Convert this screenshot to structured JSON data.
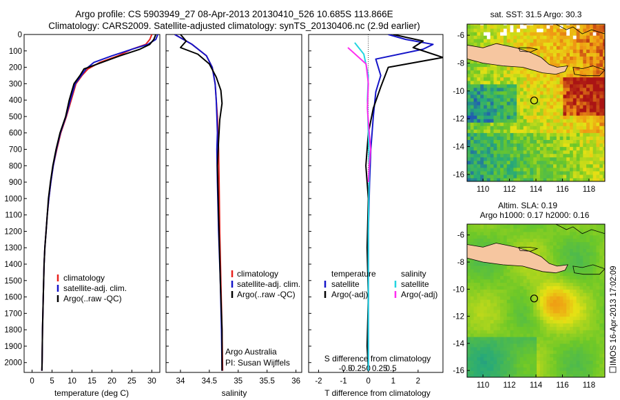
{
  "figure": {
    "title_line1": "Argo profile: CS 5903949_27 08-Apr-2013 20130410_526 10.685S 113.866E",
    "title_line2": "Climatology: CARS2009. Satellite-adjusted climatology: synTS_20130406.nc (2.9d earlier)",
    "side_text": "IMOS 16-Apr-2013 17:02:09",
    "colors": {
      "climatology": "#e8211d",
      "satellite": "#1414c8",
      "argo": "#000000",
      "sat_salinity": "#22d4e0",
      "argo_salinity_adj": "#ff2cf0"
    }
  },
  "chart_data": [
    {
      "id": "temperature-profile",
      "type": "line",
      "xlabel": "temperature (deg C)",
      "ylabel": "",
      "xlim": [
        -2,
        32
      ],
      "ylim": [
        2060,
        0
      ],
      "xticks": [
        0,
        5,
        10,
        15,
        20,
        25,
        30
      ],
      "xtick_labels": [
        "0",
        "5",
        "10",
        "15",
        "20",
        "25",
        "30"
      ],
      "yticks": [
        0,
        100,
        200,
        300,
        400,
        500,
        600,
        700,
        800,
        900,
        1000,
        1100,
        1200,
        1300,
        1400,
        1500,
        1600,
        1700,
        1800,
        1900,
        2000
      ],
      "ytick_labels": [
        "0",
        "100",
        "200",
        "300",
        "400",
        "500",
        "600",
        "700",
        "800",
        "900",
        "1000",
        "1100",
        "1200",
        "1300",
        "1400",
        "1500",
        "1600",
        "1700",
        "1800",
        "1900",
        "2000"
      ],
      "legend": [
        "climatology",
        "satellite-adj. clim.",
        "Argo(..raw -QC)"
      ],
      "series": [
        {
          "name": "climatology",
          "color": "#e8211d",
          "x": [
            30,
            29.5,
            28.5,
            25,
            21.5,
            17,
            14,
            12.5,
            11,
            9.8,
            8.6,
            7.2,
            6.2,
            5.3,
            4.7,
            4.2,
            3.8,
            3.5,
            3.2,
            3.0,
            2.8,
            2.6,
            2.5,
            2.45
          ],
          "y": [
            0,
            30,
            60,
            90,
            130,
            170,
            210,
            250,
            300,
            400,
            500,
            600,
            700,
            800,
            900,
            1000,
            1100,
            1200,
            1300,
            1400,
            1600,
            1800,
            2000,
            2050
          ]
        },
        {
          "name": "satellite-adj. clim.",
          "color": "#1414c8",
          "x": [
            31.5,
            31,
            29,
            25,
            20,
            15.5,
            13.5,
            12.3,
            10.8,
            9.6,
            8.5,
            7.1,
            6.1,
            5.3,
            4.7,
            4.2,
            3.8,
            3.5,
            3.2,
            3.0,
            2.8,
            2.6,
            2.5,
            2.45
          ],
          "y": [
            0,
            30,
            60,
            90,
            130,
            170,
            210,
            250,
            300,
            400,
            500,
            600,
            700,
            800,
            900,
            1000,
            1100,
            1200,
            1300,
            1400,
            1600,
            1800,
            2000,
            2050
          ]
        },
        {
          "name": "Argo(..raw -QC)",
          "color": "#000000",
          "x": [
            31,
            30.5,
            29.5,
            27,
            22,
            17.5,
            13,
            12,
            10.5,
            9.3,
            8.4,
            7.0,
            6.0,
            5.2,
            4.6,
            4.1,
            3.8,
            3.5,
            3.2,
            3.0,
            2.8,
            2.6,
            2.5,
            2.45
          ],
          "y": [
            0,
            30,
            60,
            90,
            130,
            170,
            210,
            250,
            300,
            400,
            500,
            600,
            700,
            800,
            900,
            1000,
            1100,
            1200,
            1300,
            1400,
            1600,
            1800,
            2000,
            2050
          ]
        }
      ]
    },
    {
      "id": "salinity-profile",
      "type": "line",
      "xlabel": "salinity",
      "xlim": [
        33.75,
        36.1
      ],
      "ylim": [
        2060,
        0
      ],
      "xticks": [
        34,
        34.5,
        35,
        35.5,
        36
      ],
      "xtick_labels": [
        "34",
        "34.5",
        "35",
        "35.5",
        "36"
      ],
      "legend": [
        "climatology",
        "satellite-adj. clim.",
        "Argo(..raw -QC)"
      ],
      "annotations": [
        "Argo Australia",
        "PI: Susan Wijffels"
      ],
      "series": [
        {
          "name": "climatology",
          "color": "#e8211d",
          "x": [
            33.9,
            34.2,
            34.45,
            34.55,
            34.6,
            34.62,
            34.64,
            34.65,
            34.66,
            34.67,
            34.68,
            34.7,
            34.72,
            34.73
          ],
          "y": [
            0,
            60,
            130,
            200,
            300,
            400,
            500,
            600,
            700,
            900,
            1200,
            1500,
            1800,
            2050
          ]
        },
        {
          "name": "satellite-adj. clim.",
          "color": "#1414c8",
          "x": [
            33.9,
            34.2,
            34.45,
            34.55,
            34.6,
            34.62,
            34.63,
            34.64,
            34.63,
            34.64,
            34.66,
            34.69,
            34.71,
            34.72
          ],
          "y": [
            0,
            60,
            130,
            200,
            300,
            400,
            500,
            600,
            700,
            900,
            1200,
            1500,
            1800,
            2050
          ]
        },
        {
          "name": "Argo(..raw -QC)",
          "color": "#000000",
          "x": [
            34.0,
            34.1,
            34.0,
            34.3,
            34.5,
            34.62,
            34.7,
            34.72,
            34.68,
            34.66,
            34.64,
            34.66,
            34.69,
            34.72,
            34.72
          ],
          "y": [
            0,
            40,
            80,
            120,
            180,
            260,
            340,
            420,
            520,
            650,
            800,
            1100,
            1500,
            1800,
            2050
          ]
        }
      ]
    },
    {
      "id": "difference-profile",
      "type": "line",
      "xlabel": "T difference from climatology",
      "xlabel2": "S difference from climatology",
      "xlim": [
        -2.4,
        3.0
      ],
      "ylim": [
        2060,
        0
      ],
      "xticks": [
        -2,
        -1,
        0,
        1,
        2
      ],
      "xtick_labels": [
        "-2",
        "-1",
        "0",
        "1",
        "2"
      ],
      "xticks2": [
        -0.5,
        -0.25,
        0,
        0.25,
        0.5
      ],
      "xtick2_labels": [
        "-0.5",
        "-0.25",
        "0",
        "0.25",
        "0.5"
      ],
      "legend_temperature_title": "temperature",
      "legend_salinity_title": "salinity",
      "legend": [
        "satellite",
        "Argo(-adj)",
        "satellite",
        "Argo(-adj)"
      ],
      "series": [
        {
          "name": "T satellite",
          "color": "#1414c8",
          "x": [
            0.8,
            1.5,
            2.6,
            2.2,
            0.3,
            0.5,
            0.3,
            0.2,
            0.1,
            0.05,
            0.0,
            0.0,
            0.0
          ],
          "y": [
            0,
            30,
            60,
            90,
            150,
            250,
            350,
            500,
            700,
            900,
            1200,
            1600,
            2050
          ]
        },
        {
          "name": "T Argo(-adj)",
          "color": "#000000",
          "x": [
            1.0,
            2.2,
            1.8,
            3.0,
            0.8,
            0.5,
            0.2,
            0.0,
            -0.1,
            0.0,
            -0.05,
            0.0,
            -0.05,
            0.0
          ],
          "y": [
            0,
            40,
            80,
            140,
            200,
            320,
            450,
            600,
            800,
            1000,
            1300,
            1600,
            1900,
            2050
          ]
        },
        {
          "name": "S satellite",
          "color": "#22d4e0",
          "x": [
            -0.3,
            -0.1,
            0.0,
            -0.02,
            0.0,
            0.02,
            0.0,
            0.0
          ],
          "y": [
            50,
            120,
            250,
            400,
            600,
            800,
            1200,
            2050
          ]
        },
        {
          "name": "S Argo(-adj)",
          "color": "#ff2cf0",
          "x": [
            -0.45,
            -0.05,
            0.0,
            -0.02,
            0.02,
            0.05,
            0.02,
            0.0
          ],
          "y": [
            80,
            180,
            300,
            450,
            600,
            700,
            800,
            900
          ]
        }
      ]
    },
    {
      "id": "sst-map",
      "type": "heatmap",
      "title": "sat. SST: 31.5  Argo: 30.3",
      "xlim": [
        108.8,
        119.2
      ],
      "ylim": [
        -16.5,
        -5.2
      ],
      "xticks": [
        110,
        112,
        114,
        116,
        118
      ],
      "xtick_labels": [
        "110",
        "112",
        "114",
        "116",
        "118"
      ],
      "yticks": [
        -6,
        -8,
        -10,
        -12,
        -14,
        -16
      ],
      "ytick_labels": [
        "-6",
        "-8",
        "-10",
        "-12",
        "-14",
        "-16"
      ],
      "marker": {
        "lon": 113.866,
        "lat": -10.685
      }
    },
    {
      "id": "sla-map",
      "type": "heatmap",
      "title_line1": "Altim. SLA: 0.19",
      "title_line2": "Argo h1000: 0.17  h2000: 0.16",
      "xlim": [
        108.8,
        119.2
      ],
      "ylim": [
        -16.5,
        -5.2
      ],
      "xticks": [
        110,
        112,
        114,
        116,
        118
      ],
      "xtick_labels": [
        "110",
        "112",
        "114",
        "116",
        "118"
      ],
      "yticks": [
        -6,
        -8,
        -10,
        -12,
        -14,
        -16
      ],
      "ytick_labels": [
        "-6",
        "-8",
        "-10",
        "-12",
        "-14",
        "-16"
      ],
      "marker": {
        "lon": 113.866,
        "lat": -10.685
      }
    }
  ]
}
